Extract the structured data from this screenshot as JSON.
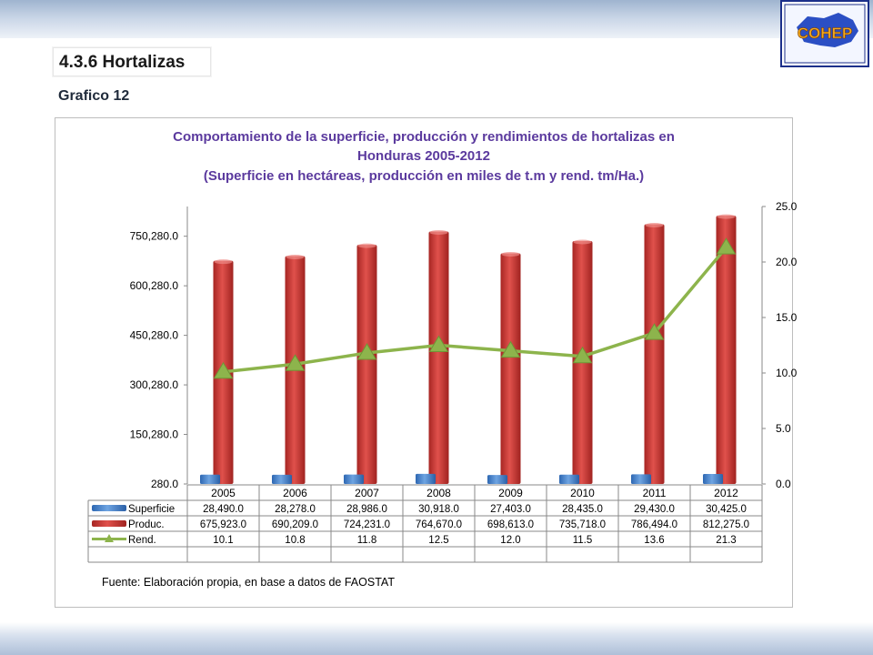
{
  "section": {
    "title": "4.3.6 Hortalizas",
    "subtitle": "Grafico 12"
  },
  "logo": {
    "text": "COHEP"
  },
  "chart_data": {
    "type": "bar",
    "title_lines": [
      "Comportamiento de la superficie, producción y rendimientos de  hortalizas en",
      "Honduras 2005-2012",
      "(Superficie en hectáreas, producción en miles de t.m y rend. tm/Ha.)"
    ],
    "categories": [
      "2005",
      "2006",
      "2007",
      "2008",
      "2009",
      "2010",
      "2011",
      "2012"
    ],
    "series": [
      {
        "name": "Superficie",
        "kind": "bar",
        "axis": "left",
        "color": "#4f8ad0",
        "values": [
          28490.0,
          28278.0,
          28986.0,
          30918.0,
          27403.0,
          28435.0,
          29430.0,
          30425.0
        ],
        "labels": [
          "28,490.0",
          "28,278.0",
          "28,986.0",
          "30,918.0",
          "27,403.0",
          "28,435.0",
          "29,430.0",
          "30,425.0"
        ]
      },
      {
        "name": "Produc.",
        "kind": "bar",
        "axis": "left",
        "color": "#d03a36",
        "values": [
          675923.0,
          690209.0,
          724231.0,
          764670.0,
          698613.0,
          735718.0,
          786494.0,
          812275.0
        ],
        "labels": [
          "675,923.0",
          "690,209.0",
          "724,231.0",
          "764,670.0",
          "698,613.0",
          "735,718.0",
          "786,494.0",
          "812,275.0"
        ]
      },
      {
        "name": "Rend.",
        "kind": "line",
        "axis": "right",
        "color": "#8db44c",
        "values": [
          10.1,
          10.8,
          11.8,
          12.5,
          12.0,
          11.5,
          13.6,
          21.3
        ],
        "labels": [
          "10.1",
          "10.8",
          "11.8",
          "12.5",
          "12.0",
          "11.5",
          "13.6",
          "21.3"
        ]
      }
    ],
    "y_left": {
      "min": 280.0,
      "max": 840280.0,
      "ticks": [
        280.0,
        150280.0,
        300280.0,
        450280.0,
        600280.0,
        750280.0
      ],
      "tick_labels": [
        "280.0",
        "150,280.0",
        "300,280.0",
        "450,280.0",
        "600,280.0",
        "750,280.0"
      ]
    },
    "y_right": {
      "min": 0,
      "max": 25,
      "ticks": [
        0,
        5,
        10,
        15,
        20,
        25
      ],
      "tick_labels": [
        "0.0",
        "5.0",
        "10.0",
        "15.0",
        "20.0",
        "25.0"
      ]
    },
    "legend": "data-table-below",
    "source": "Fuente: Elaboración propia, en base a datos de FAOSTAT"
  }
}
